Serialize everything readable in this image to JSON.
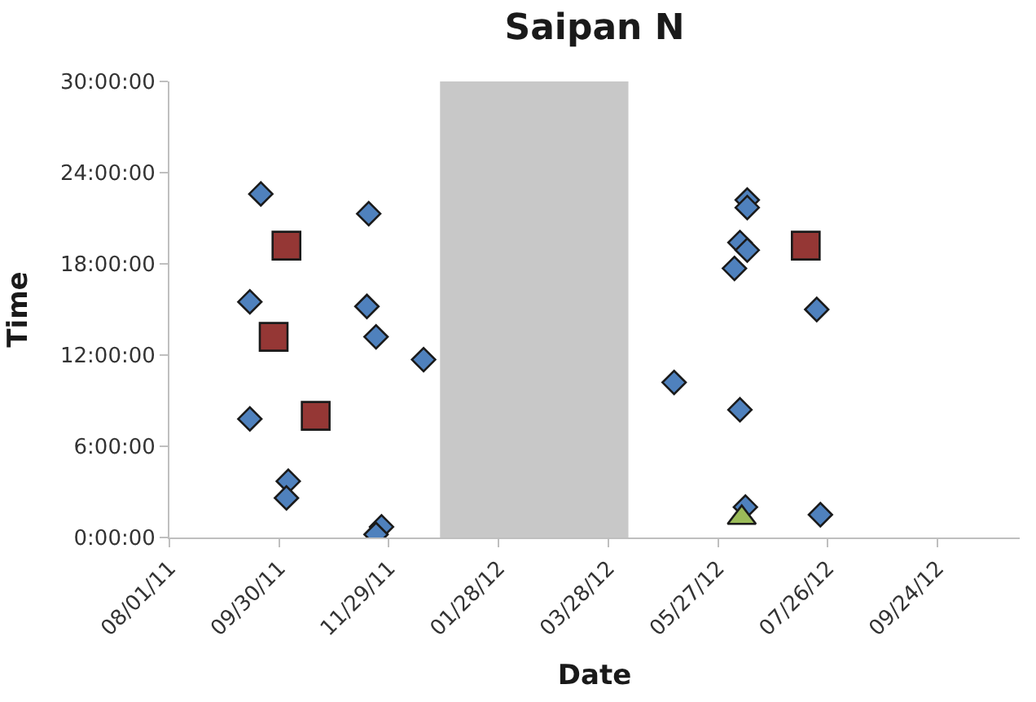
{
  "chart_data": {
    "type": "scatter",
    "title": "Saipan N",
    "xlabel": "Date",
    "ylabel": "Time",
    "xlim": [
      "2011-08-01",
      "2012-11-08"
    ],
    "xticks": [
      {
        "value": "2011-08-01",
        "label": "08/01/11"
      },
      {
        "value": "2011-09-30",
        "label": "09/30/11"
      },
      {
        "value": "2011-11-29",
        "label": "11/29/11"
      },
      {
        "value": "2012-01-28",
        "label": "01/28/12"
      },
      {
        "value": "2012-03-28",
        "label": "03/28/12"
      },
      {
        "value": "2012-05-27",
        "label": "05/27/12"
      },
      {
        "value": "2012-07-26",
        "label": "07/26/12"
      },
      {
        "value": "2012-09-24",
        "label": "09/24/12"
      }
    ],
    "ylim": [
      0,
      30
    ],
    "yticks": [
      {
        "value": 0,
        "label": "0:00:00"
      },
      {
        "value": 6,
        "label": "6:00:00"
      },
      {
        "value": 12,
        "label": "12:00:00"
      },
      {
        "value": 18,
        "label": "18:00:00"
      },
      {
        "value": 24,
        "label": "24:00:00"
      },
      {
        "value": 30,
        "label": "30:00:00"
      }
    ],
    "grid": false,
    "bands": [
      {
        "axis": "x",
        "from": "2011-12-27",
        "to": "2012-04-08",
        "color": "#c8c8c8"
      }
    ],
    "series": [
      {
        "color": "#4f81bd",
        "marker": "diamond",
        "x": [
          "2011-09-20",
          "2011-09-14",
          "2011-09-14",
          "2011-10-05",
          "2011-10-04",
          "2011-11-18",
          "2011-11-17",
          "2011-11-22",
          "2011-12-18",
          "2011-11-25",
          "2011-11-22",
          "2012-06-12",
          "2012-06-12",
          "2012-06-08",
          "2012-06-12",
          "2012-06-05",
          "2012-07-20",
          "2012-05-03",
          "2012-06-08",
          "2012-06-11",
          "2012-07-22"
        ],
        "values": [
          22.6,
          15.5,
          7.8,
          3.7,
          2.6,
          21.3,
          15.2,
          13.2,
          11.7,
          0.7,
          0.2,
          22.2,
          21.7,
          19.4,
          18.9,
          17.7,
          15.0,
          10.2,
          8.4,
          2.0,
          1.5
        ]
      },
      {
        "color": "#953735",
        "marker": "square",
        "x": [
          "2011-10-04",
          "2011-09-27",
          "2011-10-20",
          "2012-07-14"
        ],
        "values": [
          19.2,
          13.2,
          8.0,
          19.2
        ]
      },
      {
        "color": "#9bbb59",
        "marker": "triangle",
        "x": [
          "2012-06-09"
        ],
        "values": [
          1.3
        ]
      }
    ]
  }
}
